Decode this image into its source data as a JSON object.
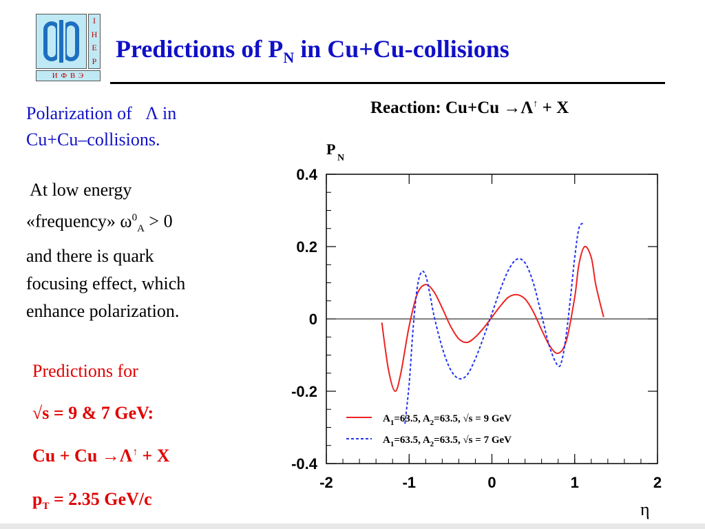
{
  "logo": {
    "side_letters": [
      "I",
      "H",
      "E",
      "P"
    ],
    "bottom_text": "И Ф В Э",
    "brand_color": "#1e6fc0",
    "bg_color": "#bfe9f4"
  },
  "header": {
    "title_main": "Predictions of P",
    "title_sub": "N",
    "title_rest": " in Cu+Cu-collisions",
    "title_color": "#1010c8"
  },
  "left_panel": {
    "heading_line1": "Polarization of   Λ in",
    "heading_line2": "Cu+Cu–collisions.",
    "body_line1": " At low energy",
    "body_line2_pre": "«frequency» ω",
    "body_line2_sup": "0",
    "body_line2_sub": "A",
    "body_line2_post": " > 0",
    "body_line3": "and there is quark",
    "body_line4": "focusing effect, which",
    "body_line5": "enhance polarization."
  },
  "predictions": {
    "line1": "Predictions for",
    "line2": "√s = 9 & 7 GeV:",
    "line3_pre": "Cu + Cu →Λ",
    "line3_sup": "↑",
    "line3_post": " + X",
    "line4_pre": "p",
    "line4_sub": "T",
    "line4_post": " = 2.35 GeV/c",
    "color": "#e00000"
  },
  "reaction": {
    "pre": "Reaction: Cu+Cu →Λ",
    "sup": "↑",
    "post": " + X"
  },
  "chart_data": {
    "type": "line",
    "ylabel_main": "P",
    "ylabel_sub": "N",
    "xlabel": "η",
    "xlim": [
      -2,
      2
    ],
    "ylim": [
      -0.4,
      0.4
    ],
    "xticks": [
      -2,
      -1,
      0,
      1,
      2
    ],
    "yticks": [
      0.4,
      0.2,
      0,
      -0.2,
      -0.4
    ],
    "xtick_labels": [
      "-2",
      "-1",
      "0",
      "1",
      "2"
    ],
    "ytick_labels": [
      "0.4",
      "0.2",
      "0",
      "-0.2",
      "-0.4"
    ],
    "zero_line": true,
    "legend_position": "bottom-left",
    "series": [
      {
        "name": "A1=63.5,   A2=63.5,   √s = 9 GeV",
        "legend_a1": "A",
        "legend_a1_sub": "1",
        "legend_a2": "=63.5,   A",
        "legend_a2_sub": "2",
        "legend_rest": "=63.5,  √s = 9 GeV",
        "color": "#ee2222",
        "style": "solid",
        "x": [
          -1.33,
          -1.25,
          -1.17,
          -1.1,
          -1.0,
          -0.9,
          -0.8,
          -0.7,
          -0.6,
          -0.5,
          -0.4,
          -0.3,
          -0.2,
          -0.1,
          0.0,
          0.1,
          0.2,
          0.3,
          0.4,
          0.5,
          0.6,
          0.7,
          0.8,
          0.9,
          1.0,
          1.05,
          1.12,
          1.2,
          1.25,
          1.3,
          1.35
        ],
        "y": [
          -0.01,
          -0.14,
          -0.2,
          -0.15,
          -0.02,
          0.07,
          0.095,
          0.075,
          0.03,
          -0.02,
          -0.055,
          -0.065,
          -0.05,
          -0.025,
          0.005,
          0.035,
          0.06,
          0.067,
          0.055,
          0.02,
          -0.03,
          -0.075,
          -0.095,
          -0.06,
          0.06,
          0.15,
          0.2,
          0.17,
          0.1,
          0.05,
          0.005
        ]
      },
      {
        "name": "A1=63.5,   A2=63.5,   √s = 7 GeV",
        "legend_a1": "A",
        "legend_a1_sub": "1",
        "legend_a2": "=63.5,   A",
        "legend_a2_sub": "2",
        "legend_rest": "=63.5,  √s = 7 GeV",
        "color": "#2233ee",
        "style": "dashed",
        "x": [
          -1.05,
          -1.0,
          -0.95,
          -0.9,
          -0.85,
          -0.8,
          -0.75,
          -0.7,
          -0.6,
          -0.5,
          -0.4,
          -0.3,
          -0.2,
          -0.1,
          0.0,
          0.1,
          0.2,
          0.3,
          0.4,
          0.5,
          0.6,
          0.7,
          0.8,
          0.85,
          0.9,
          0.95,
          1.0,
          1.05,
          1.1
        ],
        "y": [
          -0.29,
          -0.18,
          -0.02,
          0.09,
          0.13,
          0.12,
          0.07,
          0.01,
          -0.08,
          -0.14,
          -0.165,
          -0.155,
          -0.11,
          -0.05,
          0.015,
          0.08,
          0.135,
          0.165,
          0.155,
          0.1,
          0.01,
          -0.08,
          -0.13,
          -0.11,
          -0.04,
          0.06,
          0.17,
          0.25,
          0.265
        ]
      }
    ]
  }
}
